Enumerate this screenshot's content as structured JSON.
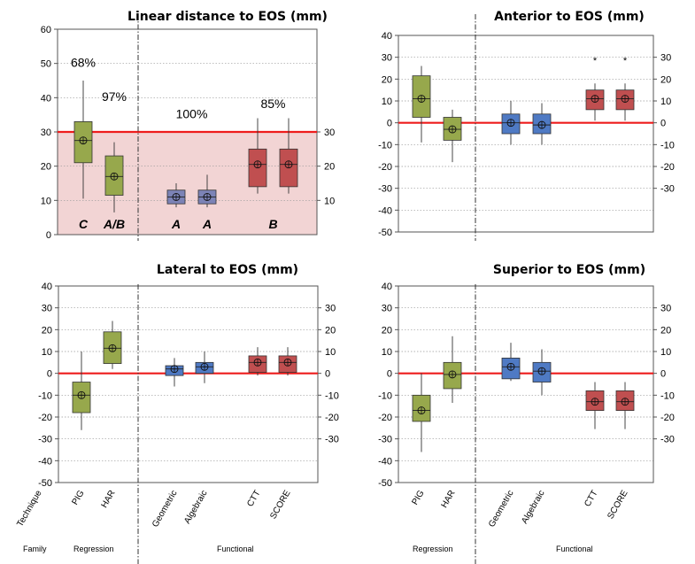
{
  "chart_data": [
    {
      "type": "box",
      "title": "Linear distance to EOS (mm)",
      "ylim": [
        0,
        60
      ],
      "yticks_left": [
        0,
        10,
        20,
        30,
        40,
        50,
        60
      ],
      "yticks_right": [
        10,
        20,
        30
      ],
      "threshold": 30,
      "shaded_band": [
        0,
        30
      ],
      "categories": [
        "PIG",
        "HAR",
        "Geometric",
        "Algebraic",
        "CTT",
        "SCORE"
      ],
      "boxes": [
        {
          "category": "PIG",
          "min": 10.5,
          "q1": 21,
          "median": 27.5,
          "q3": 33,
          "max": 45,
          "mean": 27.5,
          "color": "#97a84c"
        },
        {
          "category": "HAR",
          "min": 6.5,
          "q1": 11.5,
          "median": 17,
          "q3": 23,
          "max": 27,
          "mean": 17,
          "color": "#97a84c"
        },
        {
          "category": "Geometric",
          "min": 8,
          "q1": 9,
          "median": 11,
          "q3": 13,
          "max": 15,
          "mean": 11,
          "color": "#7c83b6"
        },
        {
          "category": "Algebraic",
          "min": 8,
          "q1": 9,
          "median": 11,
          "q3": 13,
          "max": 17.5,
          "mean": 11,
          "color": "#7c83b6"
        },
        {
          "category": "CTT",
          "min": 12,
          "q1": 14,
          "median": 20.5,
          "q3": 25,
          "max": 34,
          "mean": 20.5,
          "color": "#c04f50"
        },
        {
          "category": "SCORE",
          "min": 12,
          "q1": 14,
          "median": 20.5,
          "q3": 25,
          "max": 34,
          "mean": 20.5,
          "color": "#c04f50"
        }
      ],
      "percent_annotations": [
        {
          "text": "68%",
          "category": "PIG",
          "y": 49
        },
        {
          "text": "97%",
          "category": "HAR",
          "y": 39
        },
        {
          "text": "100%",
          "between": [
            "Geometric",
            "Algebraic"
          ],
          "y": 34
        },
        {
          "text": "85%",
          "between": [
            "CTT",
            "SCORE"
          ],
          "y": 37
        }
      ],
      "group_letters": [
        {
          "text": "C",
          "category": "PIG"
        },
        {
          "text": "A/B",
          "category": "HAR"
        },
        {
          "text": "A",
          "category": "Geometric"
        },
        {
          "text": "A",
          "category": "Algebraic"
        },
        {
          "text": "B",
          "between": [
            "CTT",
            "SCORE"
          ]
        }
      ]
    },
    {
      "type": "box",
      "title": "Anterior to EOS (mm)",
      "ylim": [
        -50,
        40
      ],
      "yticks_left": [
        -50,
        -40,
        -30,
        -20,
        -10,
        0,
        10,
        20,
        30,
        40
      ],
      "yticks_right": [
        -30,
        -20,
        -10,
        0,
        10,
        20,
        30
      ],
      "zero_line": 0,
      "categories": [
        "PIG",
        "HAR",
        "Geometric",
        "Algebraic",
        "CTT",
        "SCORE"
      ],
      "boxes": [
        {
          "category": "PIG",
          "min": -9,
          "q1": 2.5,
          "median": 11,
          "q3": 21.5,
          "max": 26,
          "mean": 11,
          "color": "#97a84c"
        },
        {
          "category": "HAR",
          "min": -18,
          "q1": -8,
          "median": -3,
          "q3": 2.5,
          "max": 6,
          "mean": -3,
          "color": "#97a84c"
        },
        {
          "category": "Geometric",
          "min": -10,
          "q1": -5,
          "median": 0,
          "q3": 4,
          "max": 10,
          "mean": 0,
          "color": "#4f7ac4"
        },
        {
          "category": "Algebraic",
          "min": -10,
          "q1": -5,
          "median": -1,
          "q3": 4,
          "max": 9,
          "mean": -1,
          "color": "#4f7ac4"
        },
        {
          "category": "CTT",
          "min": 1,
          "q1": 6,
          "median": 11,
          "q3": 15,
          "max": 18,
          "mean": 11,
          "outliers": [
            29
          ],
          "color": "#c04f50"
        },
        {
          "category": "SCORE",
          "min": 1,
          "q1": 6,
          "median": 11,
          "q3": 15,
          "max": 18,
          "mean": 11,
          "outliers": [
            29
          ],
          "color": "#c04f50"
        }
      ]
    },
    {
      "type": "box",
      "title": "Lateral  to EOS (mm)",
      "ylim": [
        -50,
        40
      ],
      "yticks_left": [
        -50,
        -40,
        -30,
        -20,
        -10,
        0,
        10,
        20,
        30,
        40
      ],
      "yticks_right": [
        -30,
        -20,
        -10,
        0,
        10,
        20,
        30
      ],
      "zero_line": 0,
      "categories": [
        "PIG",
        "HAR",
        "Geometric",
        "Algebraic",
        "CTT",
        "SCORE"
      ],
      "boxes": [
        {
          "category": "PIG",
          "min": -26,
          "q1": -18,
          "median": -10,
          "q3": -4,
          "max": 10,
          "mean": -10,
          "color": "#97a84c"
        },
        {
          "category": "HAR",
          "min": 2,
          "q1": 4.5,
          "median": 11.5,
          "q3": 19,
          "max": 24,
          "mean": 11.5,
          "color": "#97a84c"
        },
        {
          "category": "Geometric",
          "min": -6,
          "q1": -1,
          "median": 2,
          "q3": 3.5,
          "max": 7,
          "mean": 2,
          "color": "#4f7ac4"
        },
        {
          "category": "Algebraic",
          "min": -4.5,
          "q1": 0,
          "median": 3,
          "q3": 5,
          "max": 10,
          "mean": 3,
          "color": "#4f7ac4"
        },
        {
          "category": "CTT",
          "min": -1,
          "q1": 0.5,
          "median": 5,
          "q3": 8,
          "max": 12,
          "mean": 5,
          "color": "#c04f50"
        },
        {
          "category": "SCORE",
          "min": -1,
          "q1": 0.5,
          "median": 5,
          "q3": 8,
          "max": 12,
          "mean": 5,
          "color": "#c04f50"
        }
      ]
    },
    {
      "type": "box",
      "title": "Superior to EOS (mm)",
      "ylim": [
        -50,
        40
      ],
      "yticks_left": [
        -50,
        -40,
        -30,
        -20,
        -10,
        0,
        10,
        20,
        30,
        40
      ],
      "yticks_right": [
        -30,
        -20,
        -10,
        0,
        10,
        20,
        30
      ],
      "zero_line": 0,
      "categories": [
        "PIG",
        "HAR",
        "Geometric",
        "Algebraic",
        "CTT",
        "SCORE"
      ],
      "boxes": [
        {
          "category": "PIG",
          "min": -36,
          "q1": -22,
          "median": -17,
          "q3": -10,
          "max": 0,
          "mean": -17,
          "color": "#97a84c"
        },
        {
          "category": "HAR",
          "min": -13.5,
          "q1": -7,
          "median": -0.5,
          "q3": 5,
          "max": 17,
          "mean": -0.5,
          "color": "#97a84c"
        },
        {
          "category": "Geometric",
          "min": -3.5,
          "q1": -2.5,
          "median": 3,
          "q3": 7,
          "max": 14,
          "mean": 3,
          "color": "#4f7ac4"
        },
        {
          "category": "Algebraic",
          "min": -10,
          "q1": -4,
          "median": 1,
          "q3": 5,
          "max": 11,
          "mean": 1,
          "color": "#4f7ac4"
        },
        {
          "category": "CTT",
          "min": -25.5,
          "q1": -17,
          "median": -13,
          "q3": -8,
          "max": -4,
          "mean": -13,
          "color": "#c04f50"
        },
        {
          "category": "SCORE",
          "min": -25.5,
          "q1": -17,
          "median": -13,
          "q3": -8,
          "max": -4,
          "mean": -13,
          "color": "#c04f50"
        }
      ]
    }
  ],
  "x_axis": {
    "technique_label": "Technique",
    "family_label": "Family",
    "family_regression": "Regression",
    "family_functional": "Functional"
  },
  "colors": {
    "threshold_line": "#ee1c1c",
    "shaded_band": "#f2d4d4",
    "grid": "#999999"
  }
}
